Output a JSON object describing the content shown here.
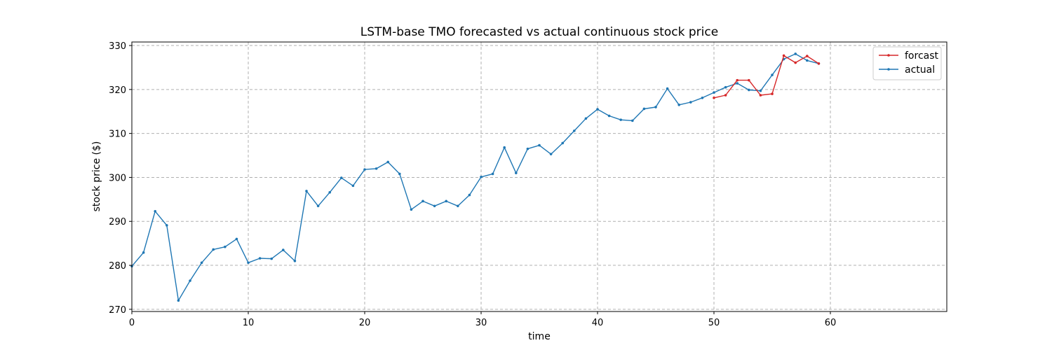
{
  "chart_data": {
    "type": "line",
    "title": "LSTM-base TMO forecasted vs actual continuous stock price",
    "xlabel": "time",
    "ylabel": "stock price ($)",
    "xlim": [
      0,
      70
    ],
    "ylim": [
      269.5,
      330.8
    ],
    "xticks": [
      0,
      10,
      20,
      30,
      40,
      50,
      60
    ],
    "yticks": [
      270,
      280,
      290,
      300,
      310,
      320,
      330
    ],
    "grid": true,
    "legend_position": "top-right",
    "series": [
      {
        "name": "forcast",
        "color": "#d62728",
        "x": [
          50,
          51,
          52,
          53,
          54,
          55,
          56,
          57,
          58,
          59
        ],
        "y": [
          318.1,
          318.7,
          322.1,
          322.1,
          318.7,
          319.0,
          327.7,
          326.1,
          327.6,
          325.9
        ]
      },
      {
        "name": "actual",
        "color": "#1f77b4",
        "x": [
          0,
          1,
          2,
          3,
          4,
          5,
          6,
          7,
          8,
          9,
          10,
          11,
          12,
          13,
          14,
          15,
          16,
          17,
          18,
          19,
          20,
          21,
          22,
          23,
          24,
          25,
          26,
          27,
          28,
          29,
          30,
          31,
          32,
          33,
          34,
          35,
          36,
          37,
          38,
          39,
          40,
          41,
          42,
          43,
          44,
          45,
          46,
          47,
          48,
          49,
          50,
          51,
          52,
          53,
          54,
          55,
          56,
          57,
          58,
          59
        ],
        "y": [
          279.8,
          282.9,
          292.3,
          289.1,
          272.0,
          276.5,
          280.6,
          283.6,
          284.2,
          286.0,
          280.6,
          281.6,
          281.5,
          283.5,
          281.0,
          296.9,
          293.5,
          296.6,
          299.9,
          298.1,
          301.8,
          302.0,
          303.5,
          300.8,
          292.7,
          294.6,
          293.5,
          294.6,
          293.5,
          296.0,
          300.1,
          300.8,
          306.8,
          301.0,
          306.5,
          307.3,
          305.3,
          307.8,
          310.6,
          313.4,
          315.5,
          314.0,
          313.1,
          312.9,
          315.6,
          316.0,
          320.2,
          316.5,
          317.1,
          318.1,
          319.3,
          320.5,
          321.4,
          319.9,
          319.7,
          323.3,
          326.9,
          328.1,
          326.6,
          325.9
        ]
      }
    ]
  }
}
